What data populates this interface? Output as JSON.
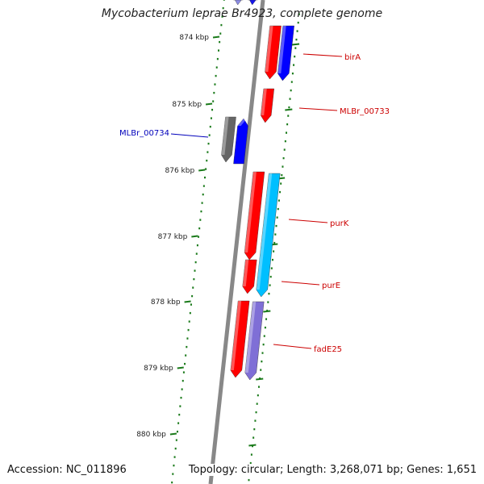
{
  "title": "Mycobacterium leprae Br4923, complete genome",
  "accession": "Accession: NC_011896",
  "topology": "Topology: circular; Length: 3,268,071 bp; Genes: 1,651",
  "colors": {
    "backbone": "#888888",
    "ticks": "#1a7a1a",
    "forward_label": "#cc0000",
    "reverse_label": "#0000bb"
  },
  "ruler": [
    {
      "label": "874 kbp"
    },
    {
      "label": "875 kbp"
    },
    {
      "label": "876 kbp"
    },
    {
      "label": "877 kbp"
    },
    {
      "label": "878 kbp"
    },
    {
      "label": "879 kbp"
    },
    {
      "label": "880 kbp"
    }
  ],
  "gene_labels": [
    {
      "name": "birA",
      "side": "right"
    },
    {
      "name": "MLBr_00733",
      "side": "right"
    },
    {
      "name": "MLBr_00734",
      "side": "left"
    },
    {
      "name": "purK",
      "side": "right"
    },
    {
      "name": "purE",
      "side": "right"
    },
    {
      "name": "fadE25",
      "side": "right"
    }
  ],
  "features": [
    {
      "color": "#ff0000",
      "dir": "down"
    },
    {
      "color": "#0000ff",
      "dir": "down"
    },
    {
      "color": "#ff0000",
      "dir": "down"
    },
    {
      "color": "#666666",
      "dir": "down"
    },
    {
      "color": "#0000ff",
      "dir": "up"
    },
    {
      "color": "#ff0000",
      "dir": "down"
    },
    {
      "color": "#00bfff",
      "dir": "down"
    },
    {
      "color": "#ff0000",
      "dir": "down"
    },
    {
      "color": "#ff0000",
      "dir": "down"
    },
    {
      "color": "#7f6fd6",
      "dir": "down"
    },
    {
      "color": "#8c8ce6",
      "dir": "down"
    },
    {
      "color": "#1515ee",
      "dir": "down"
    }
  ]
}
